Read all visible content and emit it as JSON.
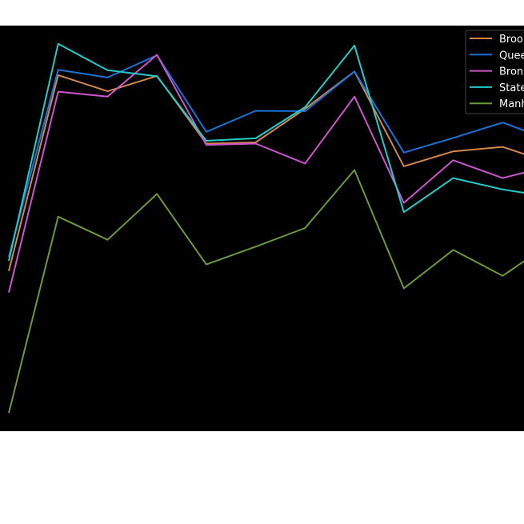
{
  "chart_data": {
    "type": "line",
    "title": "",
    "xlabel": "",
    "ylabel": "",
    "x": [
      1,
      2,
      3,
      4,
      5,
      6,
      7,
      8,
      9,
      10,
      11,
      12
    ],
    "ylim": [
      0,
      100
    ],
    "grid": false,
    "legend_position": "top-right",
    "background": "#000000",
    "series": [
      {
        "name": "Brooklyn",
        "color": "#d4874a",
        "values": [
          39.5,
          87.8,
          83.8,
          87.6,
          70.9,
          71.2,
          79.5,
          88.7,
          65.3,
          69.0,
          70.1,
          66.0
        ]
      },
      {
        "name": "Queens",
        "color": "#1a73d9",
        "values": [
          43.0,
          89.1,
          87.2,
          92.7,
          73.8,
          79.0,
          78.9,
          88.7,
          68.7,
          72.3,
          76.1,
          71.6
        ]
      },
      {
        "name": "Bronx",
        "color": "#cc55cc",
        "values": [
          34.2,
          83.7,
          82.5,
          92.8,
          70.6,
          70.9,
          66.0,
          82.5,
          56.3,
          66.8,
          62.4,
          65.5
        ]
      },
      {
        "name": "Staten Island",
        "color": "#22cccc",
        "values": [
          42.0,
          95.5,
          89.0,
          87.5,
          71.6,
          72.2,
          79.9,
          95.1,
          54.0,
          62.4,
          59.6,
          57.7
        ]
      },
      {
        "name": "Manhattan",
        "color": "#6b9a3a",
        "values": [
          4.5,
          52.9,
          47.2,
          58.5,
          41.1,
          45.5,
          50.1,
          64.4,
          35.2,
          44.7,
          38.3,
          46.6
        ]
      }
    ]
  }
}
